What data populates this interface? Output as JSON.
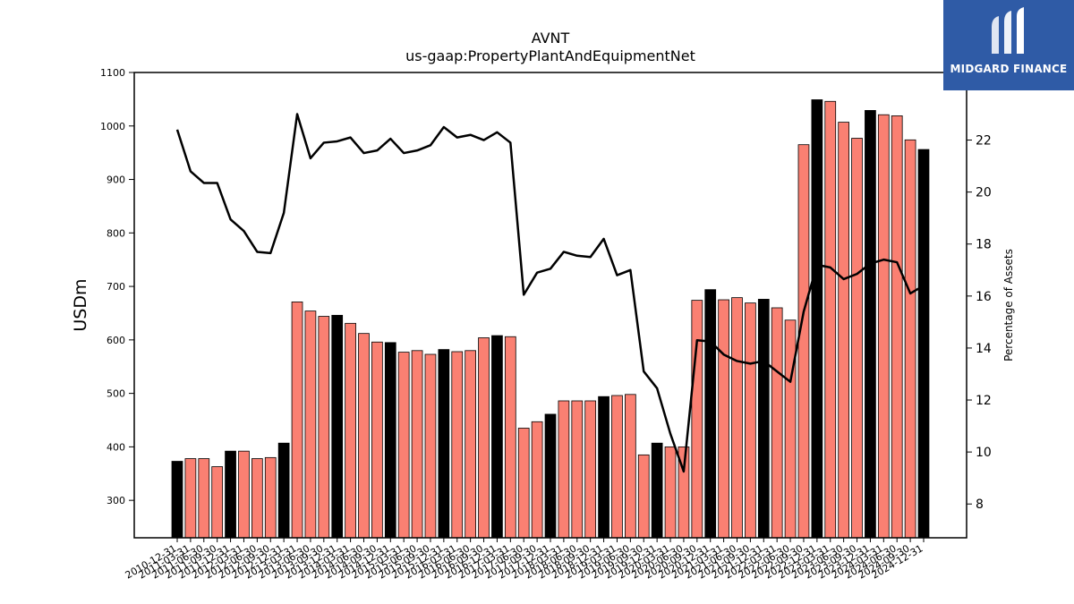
{
  "watermark": {
    "brand_text": "MIDGARD FINANCE",
    "bg_color": "#2f5ba6"
  },
  "chart_data": {
    "type": "bar",
    "title": "AVNT",
    "subtitle": "us-gaap:PropertyPlantAndEquipmentNet",
    "ylabel": "USDm",
    "y2label": "Percentage of Assets",
    "ylim": [
      230,
      1100
    ],
    "y2lim": [
      6.7,
      24.6
    ],
    "yticks": [
      300,
      400,
      500,
      600,
      700,
      800,
      900,
      1000,
      1100
    ],
    "y2ticks": [
      8,
      10,
      12,
      14,
      16,
      18,
      20,
      22
    ],
    "bar_color_default": "#fa8072",
    "bar_color_q4": "#000000",
    "line_color": "#000000",
    "categories": [
      "2010-12-31",
      "2011-03-31",
      "2011-06-30",
      "2011-09-30",
      "2011-12-31",
      "2012-03-31",
      "2012-06-30",
      "2012-09-30",
      "2012-12-31",
      "2013-03-31",
      "2013-06-30",
      "2013-09-30",
      "2013-12-31",
      "2014-03-31",
      "2014-06-30",
      "2014-09-30",
      "2014-12-31",
      "2015-03-31",
      "2015-06-30",
      "2015-09-30",
      "2015-12-31",
      "2016-03-31",
      "2016-06-30",
      "2016-09-30",
      "2016-12-31",
      "2017-03-31",
      "2017-06-30",
      "2017-09-30",
      "2017-12-31",
      "2018-03-31",
      "2018-06-30",
      "2018-09-30",
      "2018-12-31",
      "2019-03-31",
      "2019-06-30",
      "2019-09-30",
      "2019-12-31",
      "2020-03-31",
      "2020-06-30",
      "2020-09-30",
      "2020-12-31",
      "2021-03-31",
      "2021-06-30",
      "2021-09-30",
      "2021-12-31",
      "2022-03-31",
      "2022-06-30",
      "2022-09-30",
      "2022-12-31",
      "2023-03-31",
      "2023-06-30",
      "2023-09-30",
      "2023-12-31",
      "2024-03-31",
      "2024-06-30",
      "2024-09-30",
      "2024-12-31"
    ],
    "series": [
      {
        "type": "bar",
        "values": [
          373,
          378,
          378,
          363,
          392,
          392,
          378,
          380,
          407,
          671,
          654,
          644,
          646,
          631,
          612,
          596,
          595,
          577,
          580,
          573,
          582,
          578,
          580,
          604,
          608,
          606,
          435,
          447,
          461,
          486,
          486,
          486,
          494,
          496,
          498,
          385,
          407,
          400,
          400,
          674,
          694,
          675,
          679,
          669,
          676,
          660,
          637,
          965,
          1049,
          1046,
          1007,
          977,
          1029,
          1021,
          1019,
          974,
          956
        ]
      },
      {
        "type": "line",
        "values": [
          22.4,
          20.8,
          20.35,
          20.35,
          18.95,
          18.5,
          17.7,
          17.65,
          19.2,
          23.0,
          21.3,
          21.9,
          21.95,
          22.1,
          21.5,
          21.6,
          22.05,
          21.5,
          21.6,
          21.8,
          22.5,
          22.1,
          22.2,
          22.0,
          22.3,
          21.9,
          16.05,
          16.9,
          17.05,
          17.7,
          17.55,
          17.5,
          18.2,
          16.8,
          17.0,
          13.1,
          12.45,
          10.7,
          9.25,
          14.3,
          14.25,
          13.75,
          13.5,
          13.4,
          13.5,
          13.1,
          12.7,
          15.4,
          17.2,
          17.1,
          16.65,
          16.85,
          17.25,
          17.4,
          17.3,
          16.1,
          16.4
        ]
      }
    ],
    "grid": false,
    "legend": "none"
  }
}
